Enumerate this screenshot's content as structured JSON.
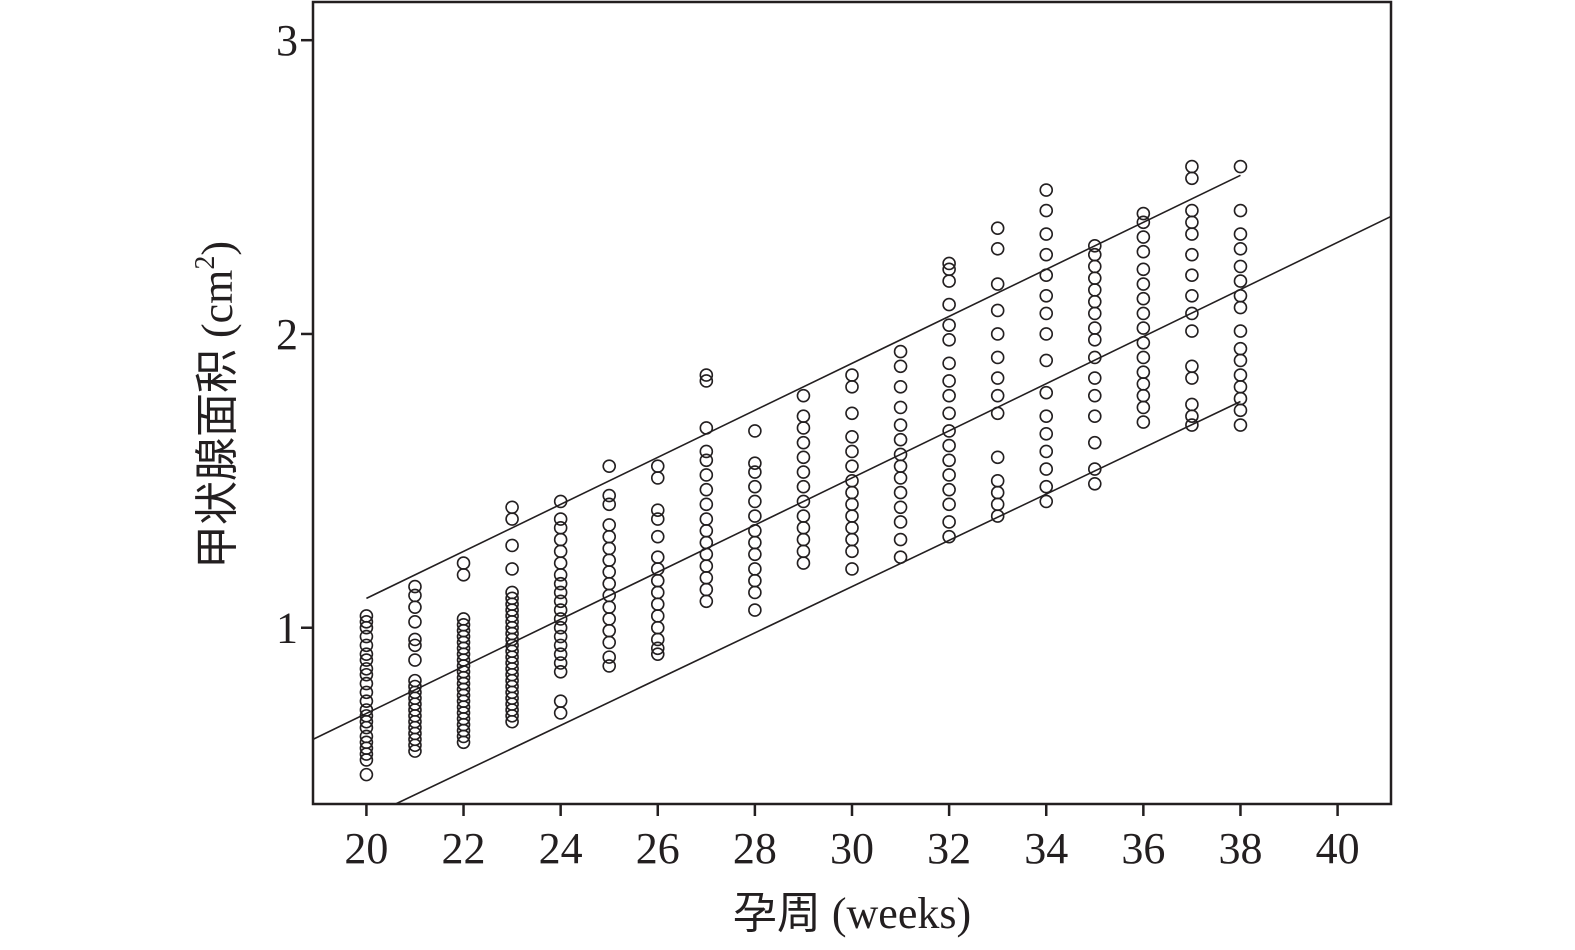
{
  "chart_data": {
    "type": "scatter",
    "title": "",
    "xlabel": "孕周 (weeks)",
    "ylabel_main": "甲状腺面积 (cm",
    "ylabel_sup": "2",
    "ylabel_end": ")",
    "xlim": [
      18.9,
      41.1
    ],
    "ylim": [
      0.4,
      3.13
    ],
    "xticks": [
      20,
      22,
      24,
      26,
      28,
      30,
      32,
      34,
      36,
      38,
      40
    ],
    "yticks": [
      1,
      2,
      3
    ],
    "grid": false,
    "lines": [
      {
        "role": "upper",
        "x": [
          20,
          38
        ],
        "y": [
          1.1,
          2.54
        ]
      },
      {
        "role": "mean",
        "x": [
          18.9,
          41.1
        ],
        "y": [
          0.62,
          2.4
        ]
      },
      {
        "role": "lower",
        "x": [
          20.6,
          38
        ],
        "y": [
          0.4,
          1.77
        ]
      }
    ],
    "points": [
      {
        "x": 20,
        "y": [
          1.04,
          1.02,
          1.0,
          0.97,
          0.94,
          0.91,
          0.89,
          0.86,
          0.84,
          0.81,
          0.78,
          0.75,
          0.72,
          0.7,
          0.68,
          0.66,
          0.63,
          0.61,
          0.59,
          0.57,
          0.55,
          0.5
        ]
      },
      {
        "x": 21,
        "y": [
          1.14,
          1.11,
          1.07,
          1.02,
          0.96,
          0.94,
          0.89,
          0.82,
          0.8,
          0.78,
          0.76,
          0.74,
          0.72,
          0.7,
          0.68,
          0.66,
          0.64,
          0.62,
          0.6,
          0.58
        ]
      },
      {
        "x": 22,
        "y": [
          1.22,
          1.18,
          1.03,
          1.01,
          0.99,
          0.97,
          0.95,
          0.93,
          0.91,
          0.89,
          0.87,
          0.85,
          0.83,
          0.81,
          0.79,
          0.77,
          0.75,
          0.73,
          0.71,
          0.69,
          0.67,
          0.65,
          0.63,
          0.61
        ]
      },
      {
        "x": 23,
        "y": [
          1.41,
          1.37,
          1.28,
          1.2,
          1.12,
          1.1,
          1.08,
          1.06,
          1.04,
          1.02,
          1.0,
          0.98,
          0.96,
          0.94,
          0.92,
          0.9,
          0.88,
          0.86,
          0.84,
          0.82,
          0.8,
          0.78,
          0.76,
          0.74,
          0.72,
          0.7,
          0.68
        ]
      },
      {
        "x": 24,
        "y": [
          1.43,
          1.37,
          1.34,
          1.3,
          1.26,
          1.22,
          1.18,
          1.15,
          1.12,
          1.09,
          1.06,
          1.03,
          1.0,
          0.97,
          0.94,
          0.91,
          0.88,
          0.85,
          0.75,
          0.71
        ]
      },
      {
        "x": 25,
        "y": [
          1.55,
          1.45,
          1.42,
          1.35,
          1.31,
          1.27,
          1.23,
          1.19,
          1.15,
          1.11,
          1.07,
          1.03,
          0.99,
          0.95,
          0.9,
          0.87
        ]
      },
      {
        "x": 26,
        "y": [
          1.55,
          1.51,
          1.4,
          1.37,
          1.31,
          1.24,
          1.2,
          1.16,
          1.12,
          1.08,
          1.04,
          1.0,
          0.96,
          0.93,
          0.91
        ]
      },
      {
        "x": 27,
        "y": [
          1.86,
          1.84,
          1.68,
          1.6,
          1.57,
          1.52,
          1.47,
          1.42,
          1.37,
          1.33,
          1.29,
          1.25,
          1.21,
          1.17,
          1.13,
          1.09
        ]
      },
      {
        "x": 28,
        "y": [
          1.67,
          1.56,
          1.53,
          1.48,
          1.43,
          1.38,
          1.33,
          1.29,
          1.25,
          1.2,
          1.16,
          1.12,
          1.06
        ]
      },
      {
        "x": 29,
        "y": [
          1.79,
          1.72,
          1.68,
          1.63,
          1.58,
          1.53,
          1.48,
          1.43,
          1.38,
          1.34,
          1.3,
          1.26,
          1.22
        ]
      },
      {
        "x": 30,
        "y": [
          1.86,
          1.82,
          1.73,
          1.65,
          1.6,
          1.55,
          1.5,
          1.46,
          1.42,
          1.38,
          1.34,
          1.3,
          1.26,
          1.2
        ]
      },
      {
        "x": 31,
        "y": [
          1.94,
          1.89,
          1.82,
          1.75,
          1.69,
          1.64,
          1.59,
          1.55,
          1.51,
          1.46,
          1.41,
          1.36,
          1.3,
          1.24
        ]
      },
      {
        "x": 32,
        "y": [
          2.24,
          2.22,
          2.18,
          2.1,
          2.03,
          1.98,
          1.9,
          1.84,
          1.79,
          1.73,
          1.67,
          1.62,
          1.57,
          1.52,
          1.47,
          1.42,
          1.36,
          1.31
        ]
      },
      {
        "x": 33,
        "y": [
          2.36,
          2.29,
          2.17,
          2.08,
          2.0,
          1.92,
          1.85,
          1.79,
          1.73,
          1.58,
          1.5,
          1.46,
          1.42,
          1.38
        ]
      },
      {
        "x": 34,
        "y": [
          2.49,
          2.42,
          2.34,
          2.27,
          2.2,
          2.13,
          2.07,
          2.0,
          1.91,
          1.8,
          1.72,
          1.66,
          1.6,
          1.54,
          1.48,
          1.43
        ]
      },
      {
        "x": 35,
        "y": [
          2.3,
          2.27,
          2.23,
          2.19,
          2.15,
          2.11,
          2.07,
          2.02,
          1.98,
          1.92,
          1.85,
          1.79,
          1.72,
          1.63,
          1.54,
          1.49
        ]
      },
      {
        "x": 36,
        "y": [
          2.41,
          2.38,
          2.33,
          2.28,
          2.22,
          2.17,
          2.12,
          2.07,
          2.02,
          1.97,
          1.92,
          1.87,
          1.83,
          1.79,
          1.75,
          1.7
        ]
      },
      {
        "x": 37,
        "y": [
          2.57,
          2.53,
          2.42,
          2.38,
          2.34,
          2.27,
          2.2,
          2.13,
          2.07,
          2.01,
          1.89,
          1.85,
          1.76,
          1.72,
          1.69
        ]
      },
      {
        "x": 38,
        "y": [
          2.57,
          2.42,
          2.34,
          2.29,
          2.23,
          2.18,
          2.13,
          2.09,
          2.01,
          1.95,
          1.91,
          1.86,
          1.82,
          1.78,
          1.74,
          1.69
        ]
      }
    ]
  }
}
